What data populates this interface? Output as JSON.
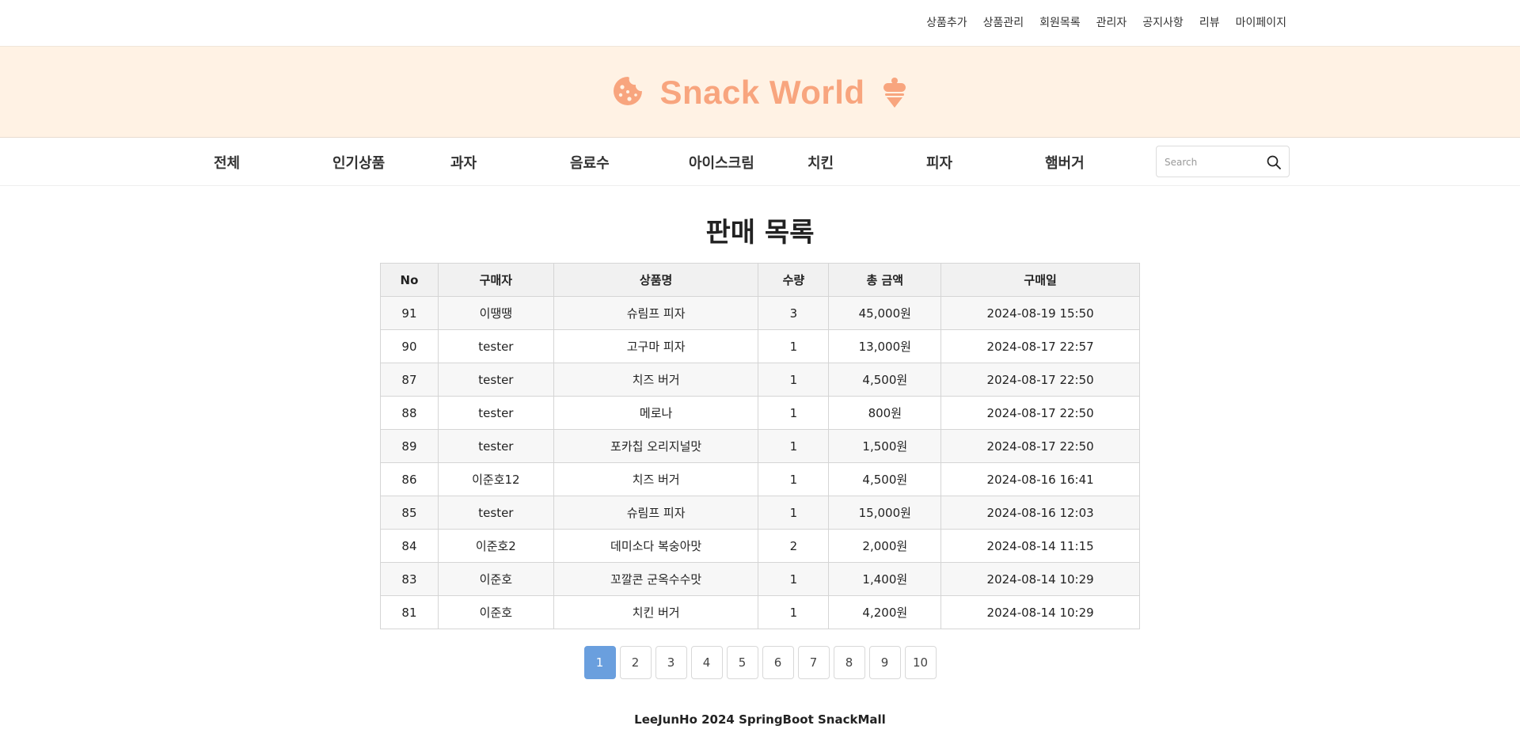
{
  "topnav": {
    "links": [
      "상품추가",
      "상품관리",
      "회원목록",
      "관리자",
      "공지사항",
      "리뷰",
      "마이페이지"
    ]
  },
  "banner": {
    "title": "Snack World",
    "left_icon": "cookie-icon",
    "right_icon": "ice-cream-icon",
    "accent_color": "#f8a57e",
    "background_color": "#fff2e4"
  },
  "categories": [
    "전체",
    "인기상품",
    "과자",
    "음료수",
    "아이스크림",
    "치킨",
    "피자",
    "햄버거"
  ],
  "search": {
    "placeholder": "Search",
    "icon": "search-icon"
  },
  "main": {
    "title": "판매 목록",
    "columns": [
      "No",
      "구매자",
      "상품명",
      "수량",
      "총 금액",
      "구매일"
    ],
    "rows": [
      [
        "91",
        "이땡땡",
        "슈림프 피자",
        "3",
        "45,000원",
        "2024-08-19 15:50"
      ],
      [
        "90",
        "tester",
        "고구마 피자",
        "1",
        "13,000원",
        "2024-08-17 22:57"
      ],
      [
        "87",
        "tester",
        "치즈 버거",
        "1",
        "4,500원",
        "2024-08-17 22:50"
      ],
      [
        "88",
        "tester",
        "메로나",
        "1",
        "800원",
        "2024-08-17 22:50"
      ],
      [
        "89",
        "tester",
        "포카칩 오리지널맛",
        "1",
        "1,500원",
        "2024-08-17 22:50"
      ],
      [
        "86",
        "이준호12",
        "치즈 버거",
        "1",
        "4,500원",
        "2024-08-16 16:41"
      ],
      [
        "85",
        "tester",
        "슈림프 피자",
        "1",
        "15,000원",
        "2024-08-16 12:03"
      ],
      [
        "84",
        "이준호2",
        "데미소다 복숭아맛",
        "2",
        "2,000원",
        "2024-08-14 11:15"
      ],
      [
        "83",
        "이준호",
        "꼬깔콘 군옥수수맛",
        "1",
        "1,400원",
        "2024-08-14 10:29"
      ],
      [
        "81",
        "이준호",
        "치킨 버거",
        "1",
        "4,200원",
        "2024-08-14 10:29"
      ]
    ]
  },
  "pagination": {
    "pages": [
      "1",
      "2",
      "3",
      "4",
      "5",
      "6",
      "7",
      "8",
      "9",
      "10"
    ],
    "current": "1",
    "active_color": "#6a9fde"
  },
  "footer": {
    "text": "LeeJunHo 2024 SpringBoot SnackMall"
  }
}
